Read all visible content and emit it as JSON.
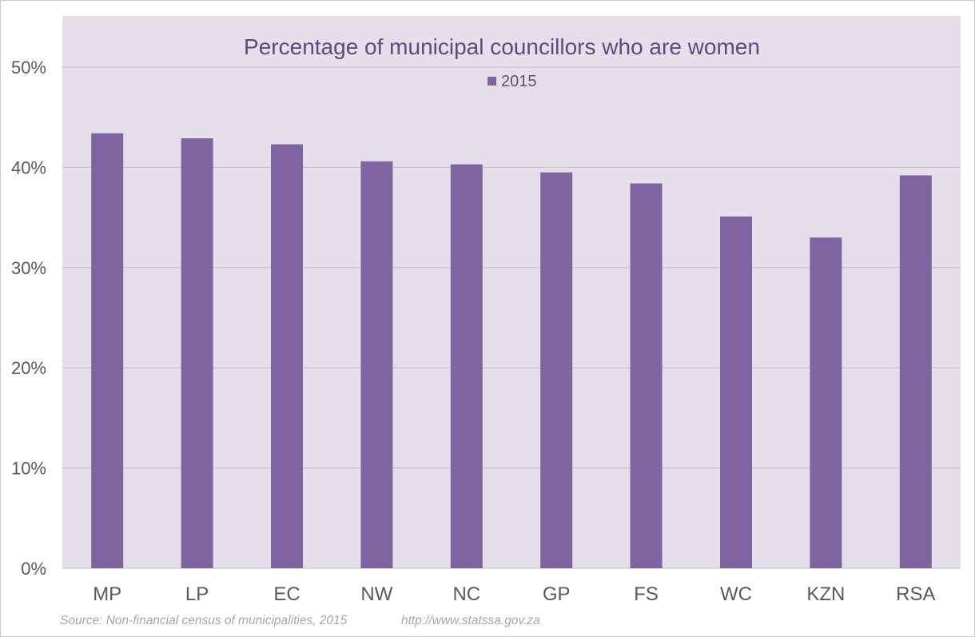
{
  "chart_data": {
    "type": "bar",
    "title": "Percentage of municipal councillors who are women",
    "categories": [
      "MP",
      "LP",
      "EC",
      "NW",
      "NC",
      "GP",
      "FS",
      "WC",
      "KZN",
      "RSA"
    ],
    "series": [
      {
        "name": "2015",
        "values": [
          43.4,
          42.9,
          42.3,
          40.6,
          40.3,
          39.5,
          38.4,
          35.1,
          33.0,
          39.2
        ]
      }
    ],
    "ylim": [
      0,
      50
    ],
    "yticks": [
      0,
      10,
      20,
      30,
      40,
      50
    ],
    "ytick_labels": [
      "0%",
      "10%",
      "20%",
      "30%",
      "40%",
      "50%"
    ],
    "xlabel": "",
    "ylabel": "",
    "grid": true,
    "legend": "top-center",
    "colors": {
      "bar": "#8064A2",
      "plot_bg": "#E5DFEC",
      "title": "#5F497A",
      "grid": "#BFBFBF"
    }
  },
  "footer": {
    "source": "Source: Non-financial census of municipalities, 2015",
    "url": "http://www.statssa.gov.za"
  }
}
